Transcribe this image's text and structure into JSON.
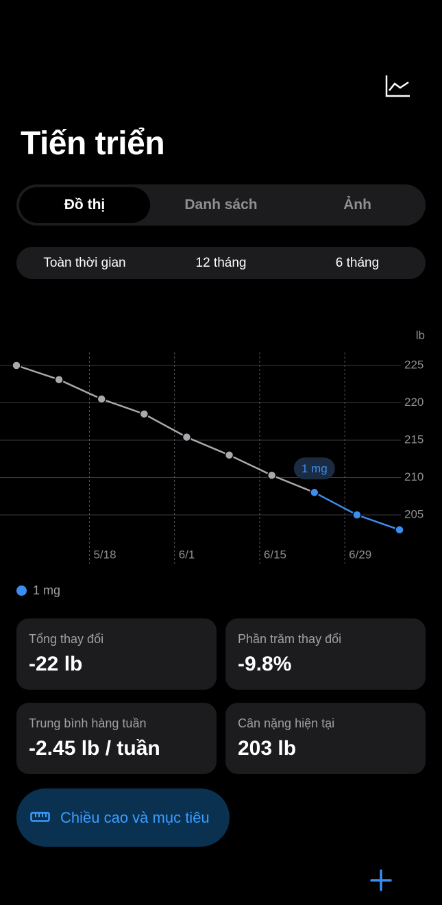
{
  "header": {
    "title": "Tiến triển"
  },
  "tabs": [
    "Đồ thị",
    "Danh sách",
    "Ảnh"
  ],
  "ranges": [
    "Toàn thời gian",
    "12 tháng",
    "6 tháng"
  ],
  "chart_data": {
    "type": "line",
    "y_unit": "lb",
    "x": [
      -12,
      -5,
      2,
      9,
      16,
      23,
      30,
      37,
      44,
      51
    ],
    "xlim": [
      -12,
      51
    ],
    "xticks": [
      {
        "value": 0,
        "label": "5/18"
      },
      {
        "value": 14,
        "label": "6/1"
      },
      {
        "value": 28,
        "label": "6/15"
      },
      {
        "value": 42,
        "label": "6/29"
      }
    ],
    "ylim": [
      200,
      227
    ],
    "yticks": [
      205,
      210,
      215,
      220,
      225
    ],
    "grid": true,
    "series": [
      {
        "color": "#a8a8ad",
        "values": [
          225,
          223.1,
          220.5,
          218.5,
          215.4,
          213,
          210.3,
          208,
          null,
          null
        ]
      },
      {
        "name": "1 mg",
        "color": "#3b8ef0",
        "values": [
          null,
          null,
          null,
          null,
          null,
          null,
          null,
          208,
          205,
          203
        ]
      }
    ]
  },
  "stats": [
    {
      "label": "Tổng thay đổi",
      "value": "-22 lb"
    },
    {
      "label": "Phần trăm thay đổi",
      "value": "-9.8%"
    },
    {
      "label": "Trung bình hàng tuần",
      "value": "-2.45 lb / tuần"
    },
    {
      "label": "Cân nặng hiện tại",
      "value": "203 lb"
    }
  ],
  "button": "Chiều cao và mục tiêu"
}
